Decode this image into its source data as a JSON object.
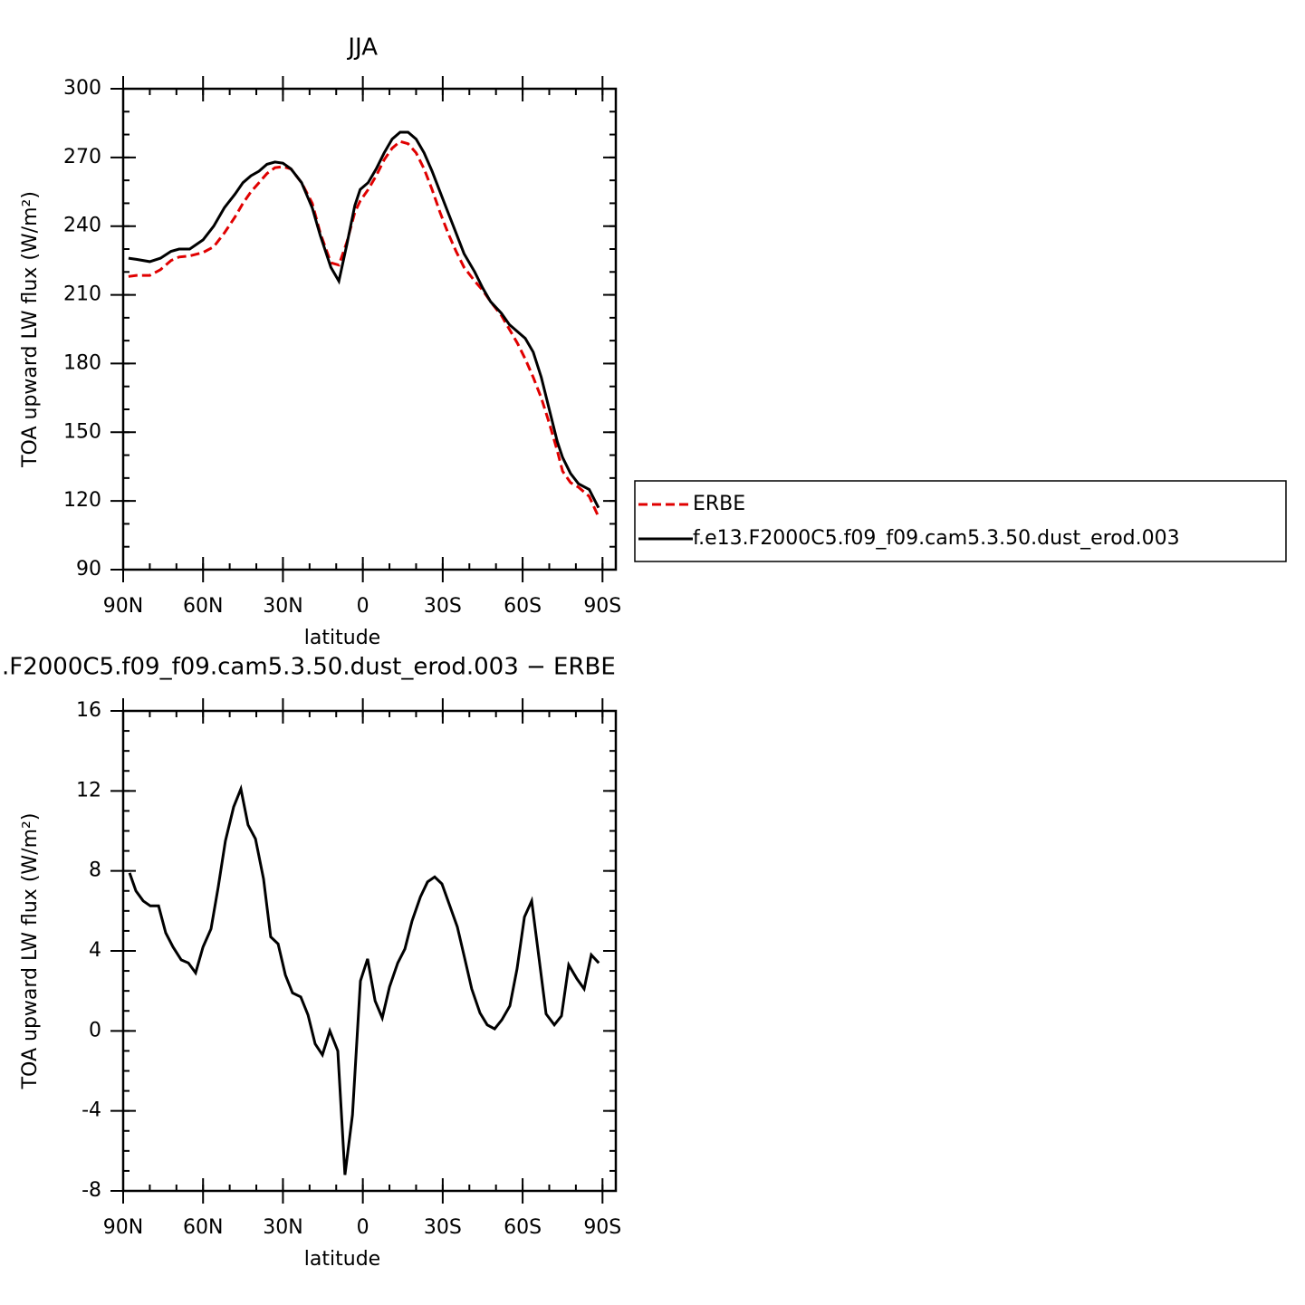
{
  "chart_data": [
    {
      "type": "line",
      "title": "JJA",
      "xlabel": "latitude",
      "ylabel": "TOA upward LW flux (W/m²)",
      "xlim": [
        90,
        -95
      ],
      "xticks": [
        {
          "value": 90,
          "label": "90N"
        },
        {
          "value": 60,
          "label": "60N"
        },
        {
          "value": 30,
          "label": "30N"
        },
        0,
        {
          "value": -30,
          "label": "30S"
        },
        {
          "value": -60,
          "label": "60S"
        },
        {
          "value": -90,
          "label": "90S"
        }
      ],
      "ylim": [
        90,
        300
      ],
      "yticks": [
        90,
        120,
        150,
        180,
        210,
        240,
        270,
        300
      ],
      "legend": "right",
      "x": [
        88,
        85,
        80,
        76,
        72,
        69,
        65,
        60,
        56,
        52,
        48,
        45,
        42,
        39,
        36,
        33,
        30,
        27,
        23,
        19,
        16,
        12,
        9,
        6,
        3,
        1,
        -2,
        -5,
        -8,
        -11,
        -14,
        -17,
        -20,
        -23,
        -26,
        -29,
        -32,
        -35,
        -38,
        -42,
        -45,
        -48,
        -52,
        -55,
        -58,
        -61,
        -64,
        -67,
        -70,
        -73,
        -75,
        -78,
        -81,
        -85,
        -88.5
      ],
      "series": [
        {
          "name": "ERBE",
          "color": "#e00000",
          "linestyle": "dashed",
          "values": [
            218,
            218.5,
            218.5,
            221,
            225,
            226.5,
            227,
            228.5,
            231,
            237,
            244,
            250,
            255,
            259,
            263,
            265.5,
            266,
            265,
            259,
            250,
            237,
            224,
            223,
            233,
            246,
            251,
            256,
            262,
            269,
            274,
            277,
            276,
            272,
            265,
            256,
            246,
            237,
            229,
            222,
            216,
            212,
            207,
            201,
            195,
            189,
            182,
            174,
            165,
            154,
            142,
            133,
            128,
            126,
            122,
            113
          ]
        },
        {
          "name": "f.e13.F2000C5.f09_f09.cam5.3.50.dust_erod.003",
          "color": "#000000",
          "linestyle": "solid",
          "values": [
            226,
            225.5,
            224.5,
            226,
            229,
            230,
            230,
            234,
            240,
            248,
            254,
            259,
            262,
            264,
            267,
            268,
            267.5,
            265,
            259,
            248,
            236,
            222,
            216,
            232,
            249,
            256,
            259,
            265,
            272,
            278,
            281,
            281,
            278,
            272,
            264,
            255,
            246,
            237,
            228,
            220,
            213,
            207,
            202,
            197,
            194,
            191,
            185,
            174,
            160,
            146,
            139,
            132,
            127.5,
            125,
            117
          ]
        }
      ]
    },
    {
      "type": "line",
      "title": ".F2000C5.f09_f09.cam5.3.50.dust_erod.003 − ERBE",
      "xlabel": "latitude",
      "ylabel": "TOA upward LW flux (W/m²)",
      "xlim": [
        90,
        -95
      ],
      "xticks": [
        {
          "value": 90,
          "label": "90N"
        },
        {
          "value": 60,
          "label": "60N"
        },
        {
          "value": 30,
          "label": "30N"
        },
        0,
        {
          "value": -30,
          "label": "30S"
        },
        {
          "value": -60,
          "label": "60S"
        },
        {
          "value": -90,
          "label": "90S"
        }
      ],
      "ylim": [
        -8,
        16
      ],
      "yticks": [
        -8,
        -4,
        0,
        4,
        8,
        12,
        16
      ],
      "x": [
        87.6,
        85.2,
        82.5,
        79.8,
        76.7,
        74,
        71.3,
        68.2,
        65.5,
        62.8,
        60,
        57,
        54.3,
        51.6,
        48.5,
        45.8,
        43.1,
        40.3,
        37.3,
        34.6,
        31.8,
        29.1,
        26.4,
        23.3,
        20.6,
        17.9,
        15.2,
        12.4,
        9.4,
        6.7,
        3.9,
        0.9,
        -1.8,
        -4.6,
        -7.3,
        -10,
        -13.1,
        -15.8,
        -18.5,
        -21.6,
        -24.3,
        -27,
        -29.7,
        -32.8,
        -35.5,
        -38.2,
        -40.9,
        -44,
        -46.7,
        -49.5,
        -52.2,
        -55.2,
        -57.9,
        -60.7,
        -63.4,
        -66.1,
        -68.8,
        -71.9,
        -74.6,
        -77.3,
        -80.4,
        -83.1,
        -85.8,
        -88.6
      ],
      "series": [
        {
          "color": "#000000",
          "linestyle": "solid",
          "values": [
            7.9,
            7.0,
            6.5,
            6.25,
            6.25,
            4.9,
            4.2,
            3.55,
            3.4,
            2.9,
            4.2,
            5.1,
            7.2,
            9.5,
            11.2,
            12.1,
            10.3,
            9.6,
            7.6,
            4.7,
            4.35,
            2.8,
            1.9,
            1.7,
            0.8,
            -0.65,
            -1.2,
            0,
            -1,
            -7.2,
            -4.2,
            2.5,
            3.6,
            1.5,
            0.65,
            2.2,
            3.4,
            4.1,
            5.5,
            6.7,
            7.45,
            7.7,
            7.35,
            6.2,
            5.2,
            3.65,
            2.1,
            0.9,
            0.3,
            0.1,
            0.55,
            1.25,
            3.1,
            5.7,
            6.5,
            3.7,
            0.85,
            0.3,
            0.75,
            3.3,
            2.6,
            2.1,
            3.8,
            3.4
          ]
        }
      ]
    }
  ]
}
